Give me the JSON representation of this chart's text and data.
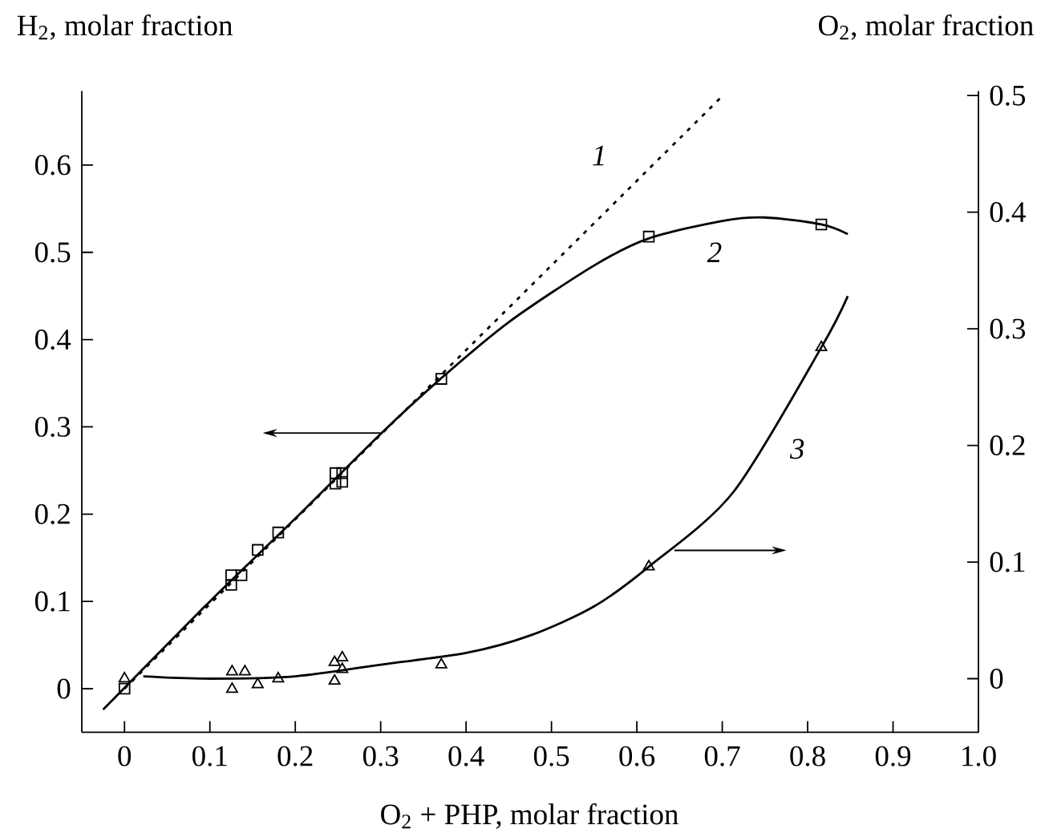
{
  "chart_data": {
    "type": "line",
    "xlabel": "O$_{2}$ + PHP, molar fraction",
    "ylabel": "H$_{2}$, molar fraction",
    "y2label": "O$_{2}$, molar fraction",
    "xlim": [
      -0.05,
      1.0
    ],
    "xticks": [
      0,
      0.1,
      0.2,
      0.3,
      0.4,
      0.5,
      0.6,
      0.7,
      0.8,
      0.9,
      {
        "value": 1.0,
        "label": "1.0"
      }
    ],
    "ylim": [
      -0.05,
      0.685
    ],
    "yticks": [
      0,
      0.1,
      0.2,
      0.3,
      0.4,
      0.5,
      0.6
    ],
    "y2lim": [
      -0.046,
      0.504
    ],
    "y2ticks": [
      0,
      0.1,
      0.2,
      0.3,
      0.4,
      0.5
    ],
    "series": [
      {
        "name": "1",
        "line_style": "dotted",
        "marker": "none",
        "color": "#000000",
        "x": [
          0,
          0.7
        ],
        "values": [
          0,
          0.679
        ]
      },
      {
        "name": "2",
        "line_style": "solid",
        "marker": "none",
        "color": "#000000",
        "x": [
          -0.025,
          0.1,
          0.2,
          0.3,
          0.37,
          0.45,
          0.55,
          0.614,
          0.7,
          0.75,
          0.816,
          0.847
        ],
        "values": [
          -0.024,
          0.1,
          0.195,
          0.292,
          0.355,
          0.42,
          0.485,
          0.516,
          0.536,
          0.54,
          0.532,
          0.521
        ]
      },
      {
        "type": "scatter",
        "marker": "square",
        "color": "#000000",
        "x": [
          0,
          0.125,
          0.125,
          0.137,
          0.156,
          0.18,
          0.247,
          0.247,
          0.255,
          0.255,
          0.371,
          0.614,
          0.816
        ],
        "values": [
          0,
          0.119,
          0.13,
          0.13,
          0.159,
          0.179,
          0.235,
          0.247,
          0.237,
          0.247,
          0.355,
          0.518,
          0.532
        ]
      },
      {
        "name": "3",
        "axis": "y2",
        "line_style": "solid",
        "marker": "none",
        "color": "#000000",
        "x": [
          0.022,
          0.1,
          0.2,
          0.3,
          0.4,
          0.475,
          0.55,
          0.614,
          0.713,
          0.816,
          0.847
        ],
        "values": [
          0.002,
          0.0,
          0.002,
          0.012,
          0.022,
          0.037,
          0.062,
          0.096,
          0.16,
          0.284,
          0.328
        ]
      },
      {
        "type": "scatter",
        "axis": "y2",
        "marker": "triangle",
        "color": "#000000",
        "x": [
          0,
          0.126,
          0.126,
          0.141,
          0.156,
          0.18,
          0.246,
          0.246,
          0.255,
          0.255,
          0.371,
          0.614,
          0.816
        ],
        "values": [
          0.0,
          0.006,
          -0.009,
          0.006,
          -0.005,
          0.0,
          0.014,
          -0.002,
          0.018,
          0.008,
          0.012,
          0.096,
          0.284
        ]
      }
    ]
  }
}
